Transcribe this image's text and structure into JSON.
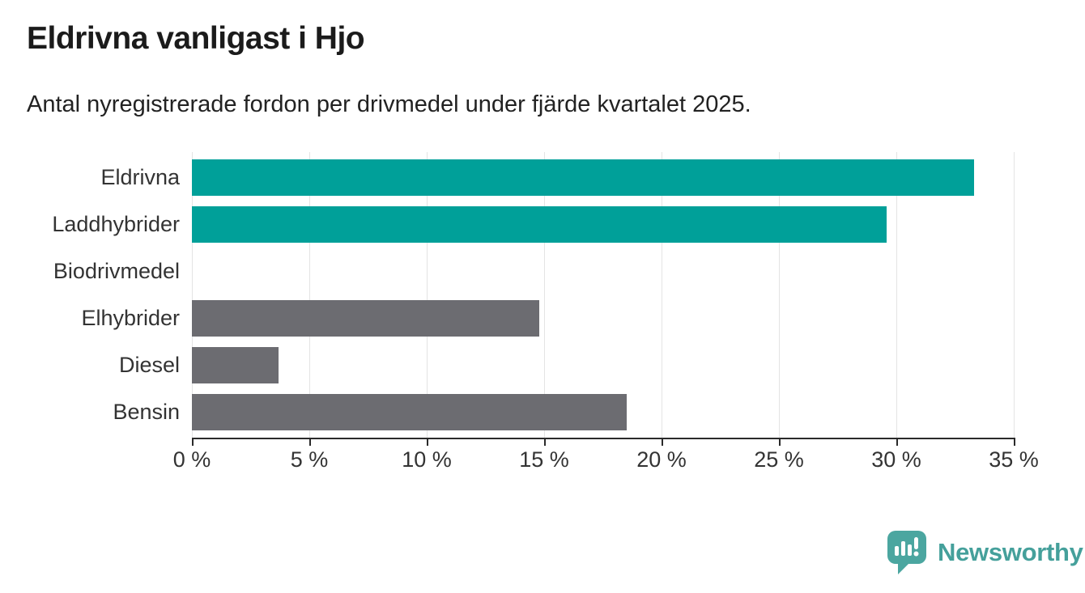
{
  "header": {
    "title": "Eldrivna vanligast i Hjo",
    "subtitle": "Antal nyregistrerade fordon per drivmedel under fjärde kvartalet 2025."
  },
  "chart_data": {
    "type": "bar",
    "orientation": "horizontal",
    "title": "Eldrivna vanligast i Hjo",
    "subtitle": "Antal nyregistrerade fordon per drivmedel under fjärde kvartalet 2025.",
    "categories": [
      "Eldrivna",
      "Laddhybrider",
      "Biodrivmedel",
      "Elhybrider",
      "Diesel",
      "Bensin"
    ],
    "values": [
      33.3,
      29.6,
      0,
      14.8,
      3.7,
      18.5
    ],
    "unit": "%",
    "colors": [
      "#00a099",
      "#00a099",
      "#6c6c71",
      "#6c6c71",
      "#6c6c71",
      "#6c6c71"
    ],
    "highlight_color": "#00a099",
    "default_color": "#6c6c71",
    "xlim": [
      0,
      35
    ],
    "x_tick_values": [
      0,
      5,
      10,
      15,
      20,
      25,
      30,
      35
    ],
    "x_tick_labels": [
      "0 %",
      "5 %",
      "10 %",
      "15 %",
      "20 %",
      "25 %",
      "30 %",
      "35 %"
    ],
    "grid": "vertical",
    "legend": "none",
    "xlabel": "",
    "ylabel": ""
  },
  "branding": {
    "logo_text": "Newsworthy",
    "logo_color": "#45a09b",
    "logo_icon": "newsworthy-speech-bubble-chart-icon"
  }
}
